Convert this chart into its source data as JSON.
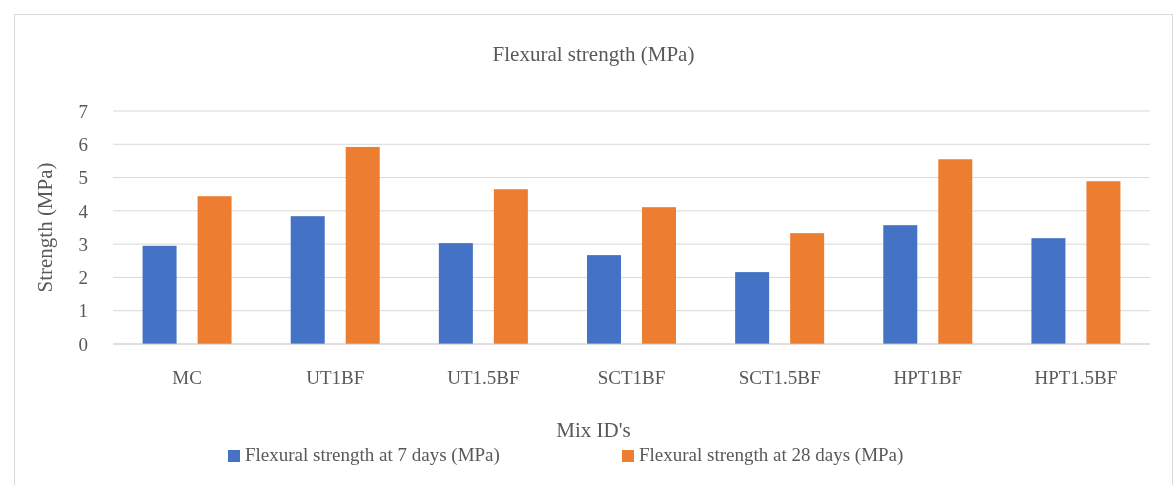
{
  "chart_data": {
    "type": "bar",
    "title": "Flexural strength (MPa)",
    "xlabel": "Mix ID's",
    "ylabel": "Strength (MPa)",
    "categories": [
      "MC",
      "UT1BF",
      "UT1.5BF",
      "SCT1BF",
      "SCT1.5BF",
      "HPT1BF",
      "HPT1.5BF"
    ],
    "series": [
      {
        "name": "Flexural strength at 7 days (MPa)",
        "color": "#4472c4",
        "values": [
          2.95,
          3.84,
          3.03,
          2.67,
          2.16,
          3.57,
          3.18
        ]
      },
      {
        "name": "Flexural strength at 28 days (MPa)",
        "color": "#ed7d31",
        "values": [
          4.44,
          5.92,
          4.65,
          4.11,
          3.33,
          5.55,
          4.89
        ]
      }
    ],
    "ylim": [
      0,
      7
    ],
    "yticks": [
      0,
      1,
      2,
      3,
      4,
      5,
      6,
      7
    ],
    "grid": "y",
    "legend": "bottom"
  }
}
